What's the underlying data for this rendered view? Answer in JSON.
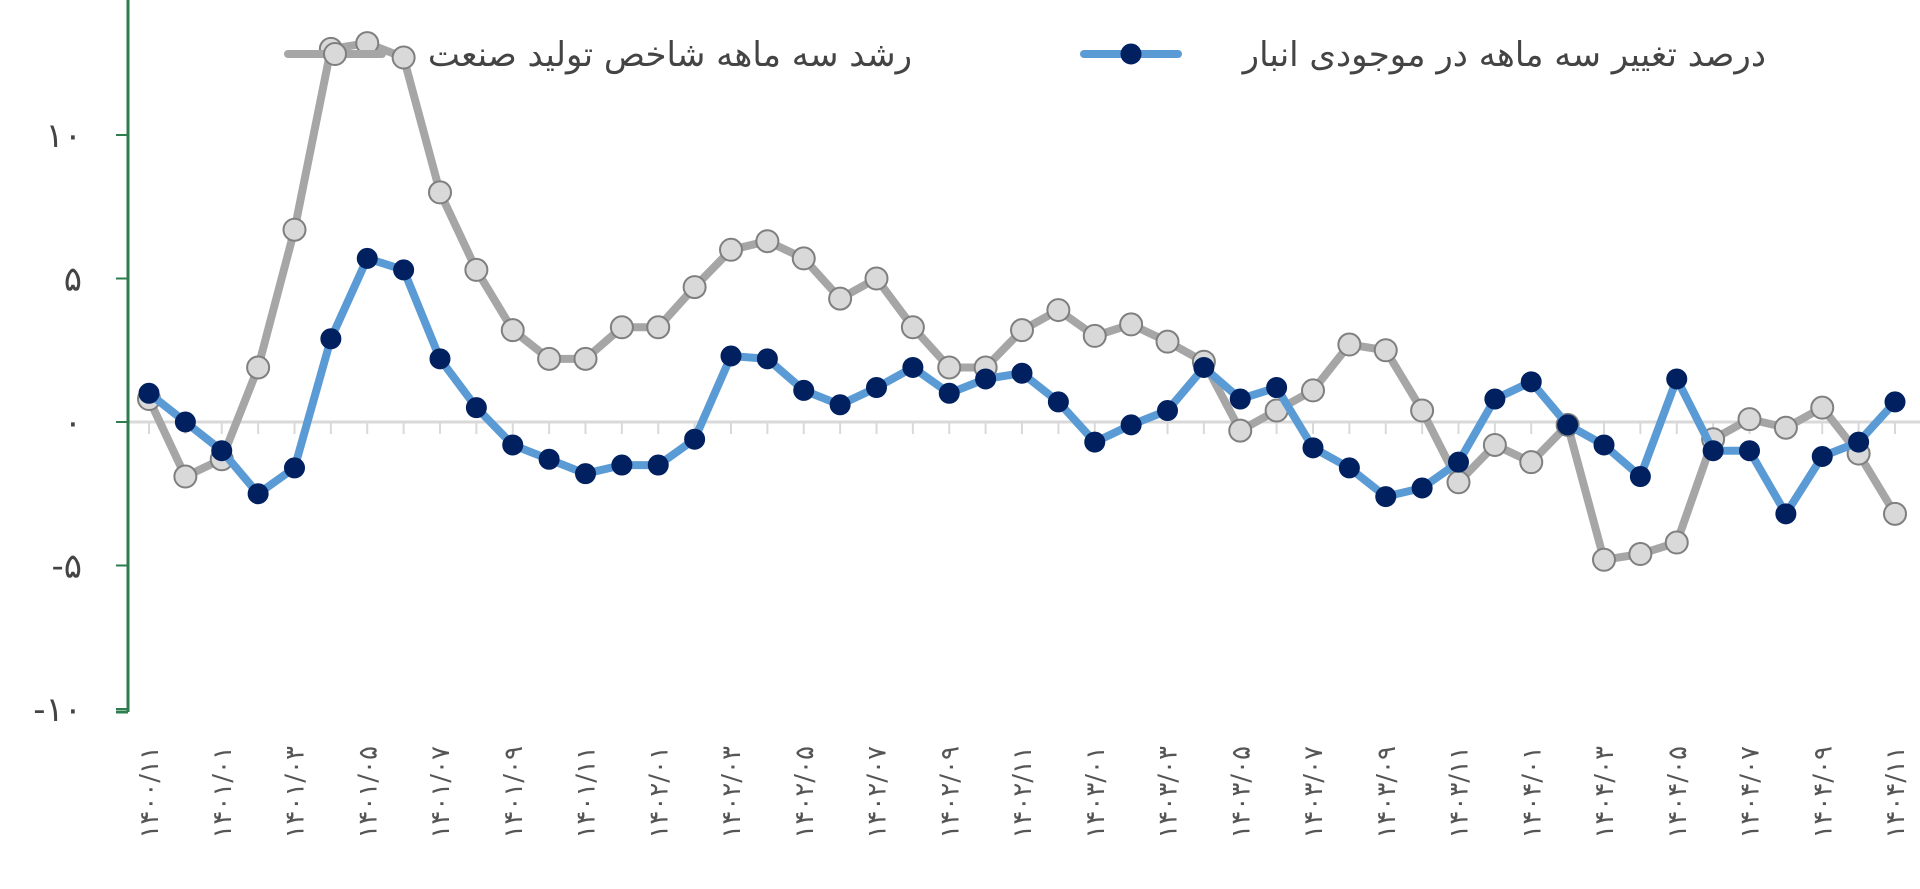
{
  "chart_data": {
    "type": "line",
    "title": "",
    "xlabel": "",
    "ylabel": "",
    "ylim": [
      -10,
      15
    ],
    "y_ticks": [
      {
        "value": -10,
        "label": "-۱۰"
      },
      {
        "value": -5,
        "label": "-۵"
      },
      {
        "value": 0,
        "label": "۰"
      },
      {
        "value": 5,
        "label": "۵"
      },
      {
        "value": 10,
        "label": "۱۰"
      }
    ],
    "x_ticks": [
      "۱۴۰۰/۱۱",
      "۱۴۰۱/۰۱",
      "۱۴۰۱/۰۳",
      "۱۴۰۱/۰۵",
      "۱۴۰۱/۰۷",
      "۱۴۰۱/۰۹",
      "۱۴۰۱/۱۱",
      "۱۴۰۲/۰۱",
      "۱۴۰۲/۰۳",
      "۱۴۰۲/۰۵",
      "۱۴۰۲/۰۷",
      "۱۴۰۲/۰۹",
      "۱۴۰۲/۱۱",
      "۱۴۰۳/۰۱",
      "۱۴۰۳/۰۳",
      "۱۴۰۳/۰۵",
      "۱۴۰۳/۰۷",
      "۱۴۰۳/۰۹",
      "۱۴۰۳/۱۱",
      "۱۴۰۴/۰۱",
      "۱۴۰۴/۰۳",
      "۱۴۰۴/۰۵",
      "۱۴۰۴/۰۷",
      "۱۴۰۴/۰۹",
      "۱۴۰۴/۱۱"
    ],
    "legend_position": "top",
    "grid": false,
    "series": [
      {
        "name": "رشد سه ماهه شاخص تولید صنعت",
        "color": "#a6a6a6",
        "marker_fill": "#d9d9d9",
        "values": [
          0.8,
          -1.9,
          -1.3,
          1.9,
          6.7,
          13.0,
          13.2,
          12.7,
          8.0,
          5.3,
          3.2,
          2.2,
          2.2,
          3.3,
          3.3,
          4.7,
          6.0,
          6.3,
          5.7,
          4.3,
          5.0,
          3.3,
          1.9,
          1.9,
          3.2,
          3.9,
          3.0,
          3.4,
          2.8,
          2.1,
          -0.3,
          0.4,
          1.1,
          2.7,
          2.5,
          0.4,
          -2.1,
          -0.8,
          -1.4,
          -0.1,
          -4.8,
          -4.6,
          -4.2,
          -0.6,
          0.1,
          -0.2,
          0.5,
          -1.1,
          -3.2
        ]
      },
      {
        "name": "درصد تغییر سه ماهه در موجودی انبار",
        "color": "#5b9bd5",
        "marker_fill": "#002060",
        "values": [
          1.0,
          0.0,
          -1.0,
          -2.5,
          -1.6,
          2.9,
          5.7,
          5.3,
          2.2,
          0.5,
          -0.8,
          -1.3,
          -1.8,
          -1.5,
          -1.5,
          -0.6,
          2.3,
          2.2,
          1.1,
          0.6,
          1.2,
          1.9,
          1.0,
          1.5,
          1.7,
          0.7,
          -0.7,
          -0.1,
          0.4,
          1.9,
          0.8,
          1.2,
          -0.9,
          -1.6,
          -2.6,
          -2.3,
          -1.4,
          0.8,
          1.4,
          -0.1,
          -0.8,
          -1.9,
          1.5,
          -1.0,
          -1.0,
          -3.2,
          -1.2,
          -0.7,
          0.7
        ]
      }
    ]
  }
}
